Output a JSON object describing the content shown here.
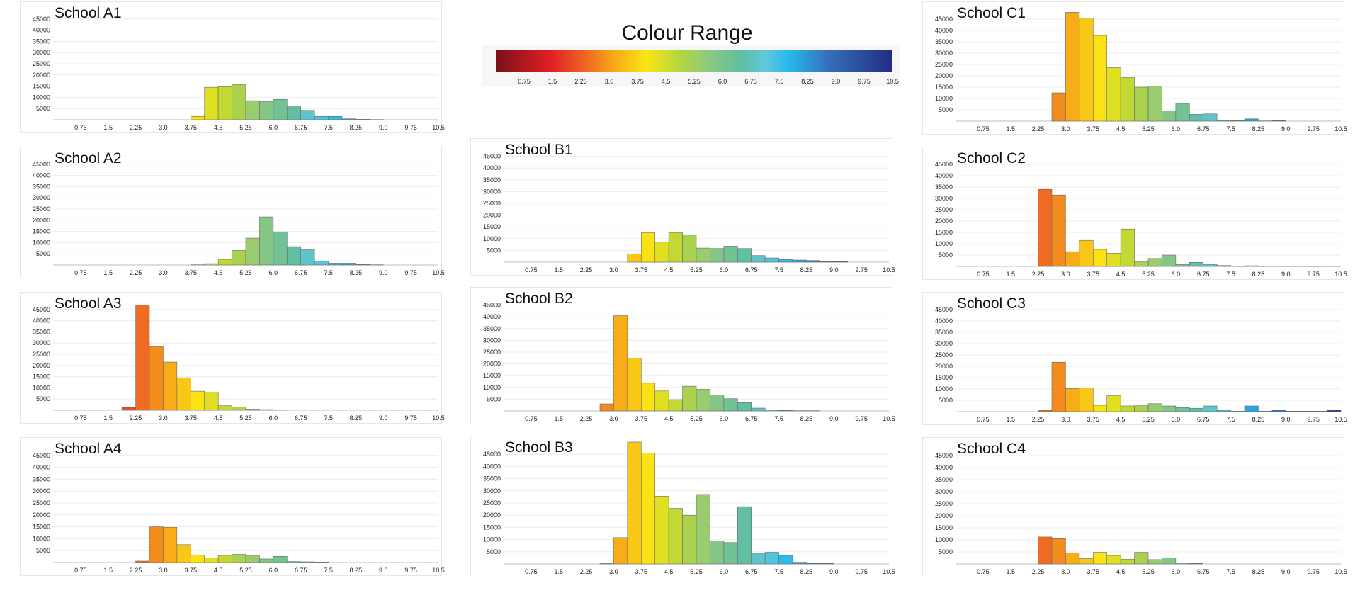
{
  "colour_range": {
    "title": "Colour Range",
    "tick_labels": [
      "0.75",
      "1.5",
      "2.25",
      "3.0",
      "3.75",
      "4.5",
      "5.25",
      "6.0",
      "6.75",
      "7.5",
      "8.25",
      "9.0",
      "9.75",
      "10.5"
    ],
    "min": 0,
    "max": 10.5
  },
  "chart_data": [
    {
      "id": "A1",
      "type": "bar",
      "title": "School A1",
      "bin_start": 3.75,
      "bin_width": 0.375,
      "ylim": [
        0,
        50000
      ],
      "y_ticks": [
        5000,
        10000,
        15000,
        20000,
        25000,
        30000,
        35000,
        40000,
        45000
      ],
      "x_tick_labels": [
        "0.75",
        "1.5",
        "2.25",
        "3.0",
        "3.75",
        "4.5",
        "5.25",
        "6.0",
        "6.75",
        "7.5",
        "8.25",
        "9.0",
        "9.75",
        "10.5"
      ],
      "values": [
        1500,
        14500,
        14800,
        15800,
        8500,
        8200,
        9100,
        5800,
        4200,
        1500,
        1500,
        400,
        200,
        100
      ]
    },
    {
      "id": "A2",
      "type": "bar",
      "title": "School A2",
      "bin_start": 3.75,
      "bin_width": 0.375,
      "ylim": [
        0,
        50000
      ],
      "y_ticks": [
        5000,
        10000,
        15000,
        20000,
        25000,
        30000,
        35000,
        40000,
        45000
      ],
      "x_tick_labels": [
        "0.75",
        "1.5",
        "2.25",
        "3.0",
        "3.75",
        "4.5",
        "5.25",
        "6.0",
        "6.75",
        "7.5",
        "8.25",
        "9.0",
        "9.75",
        "10.5"
      ],
      "values": [
        100,
        600,
        2500,
        6500,
        12000,
        21500,
        14800,
        8200,
        6800,
        1800,
        800,
        800,
        200,
        100
      ]
    },
    {
      "id": "A3",
      "type": "bar",
      "title": "School A3",
      "bin_start": 1.875,
      "bin_width": 0.375,
      "ylim": [
        0,
        50000
      ],
      "y_ticks": [
        5000,
        10000,
        15000,
        20000,
        25000,
        30000,
        35000,
        40000,
        45000
      ],
      "x_tick_labels": [
        "0.75",
        "1.5",
        "2.25",
        "3.0",
        "3.75",
        "4.5",
        "5.25",
        "6.0",
        "6.75",
        "7.5",
        "8.25",
        "9.0",
        "9.75",
        "10.5"
      ],
      "values": [
        1200,
        47000,
        28500,
        21500,
        14500,
        8500,
        8000,
        2000,
        1400,
        500,
        300,
        100
      ]
    },
    {
      "id": "A4",
      "type": "bar",
      "title": "School A4",
      "bin_start": 2.25,
      "bin_width": 0.375,
      "ylim": [
        0,
        50000
      ],
      "y_ticks": [
        5000,
        10000,
        15000,
        20000,
        25000,
        30000,
        35000,
        40000,
        45000
      ],
      "x_tick_labels": [
        "0.75",
        "1.5",
        "2.25",
        "3.0",
        "3.75",
        "4.5",
        "5.25",
        "6.0",
        "6.75",
        "7.5",
        "8.25",
        "9.0",
        "9.75",
        "10.5"
      ],
      "values": [
        600,
        15000,
        14800,
        7500,
        3200,
        2000,
        3000,
        3400,
        3000,
        1500,
        2600,
        400,
        300,
        200
      ]
    },
    {
      "id": "B1",
      "type": "bar",
      "title": "School B1",
      "bin_start": 3.375,
      "bin_width": 0.375,
      "ylim": [
        0,
        50000
      ],
      "y_ticks": [
        5000,
        10000,
        15000,
        20000,
        25000,
        30000,
        35000,
        40000,
        45000
      ],
      "x_tick_labels": [
        "0.75",
        "1.5",
        "2.25",
        "3.0",
        "3.75",
        "4.5",
        "5.25",
        "6.0",
        "6.75",
        "7.5",
        "8.25",
        "9.0",
        "9.75",
        "10.5"
      ],
      "values": [
        3500,
        12500,
        8500,
        12600,
        11500,
        6000,
        5800,
        6800,
        5800,
        2800,
        1800,
        1100,
        900,
        700,
        200,
        300
      ]
    },
    {
      "id": "B2",
      "type": "bar",
      "title": "School B2",
      "bin_start": 2.625,
      "bin_width": 0.375,
      "ylim": [
        0,
        50000
      ],
      "y_ticks": [
        5000,
        10000,
        15000,
        20000,
        25000,
        30000,
        35000,
        40000,
        45000
      ],
      "x_tick_labels": [
        "0.75",
        "1.5",
        "2.25",
        "3.0",
        "3.75",
        "4.5",
        "5.25",
        "6.0",
        "6.75",
        "7.5",
        "8.25",
        "9.0",
        "9.75",
        "10.5"
      ],
      "values": [
        3000,
        40500,
        22500,
        11800,
        8500,
        4800,
        10500,
        9200,
        6800,
        5200,
        3500,
        1200,
        400,
        200,
        100,
        100
      ]
    },
    {
      "id": "B3",
      "type": "bar",
      "title": "School B3",
      "bin_start": 2.625,
      "bin_width": 0.375,
      "ylim": [
        0,
        50000
      ],
      "y_ticks": [
        5000,
        10000,
        15000,
        20000,
        25000,
        30000,
        35000,
        40000,
        45000
      ],
      "x_tick_labels": [
        "0.75",
        "1.5",
        "2.25",
        "3.0",
        "3.75",
        "4.5",
        "5.25",
        "6.0",
        "6.75",
        "7.5",
        "8.25",
        "9.0",
        "9.75",
        "10.5"
      ],
      "values": [
        300,
        10800,
        50000,
        45500,
        27800,
        22800,
        20000,
        28500,
        9500,
        8800,
        23500,
        4200,
        4800,
        3500,
        700,
        300,
        200
      ]
    },
    {
      "id": "C1",
      "type": "bar",
      "title": "School C1",
      "bin_start": 2.625,
      "bin_width": 0.375,
      "ylim": [
        0,
        50000
      ],
      "y_ticks": [
        5000,
        10000,
        15000,
        20000,
        25000,
        30000,
        35000,
        40000,
        45000
      ],
      "x_tick_labels": [
        "0.75",
        "1.5",
        "2.25",
        "3.0",
        "3.75",
        "4.5",
        "5.25",
        "6.0",
        "6.75",
        "7.5",
        "8.25",
        "9.0",
        "9.75",
        "10.5"
      ],
      "values": [
        12500,
        48000,
        45500,
        37800,
        23600,
        19200,
        15000,
        15500,
        4500,
        7800,
        3000,
        3200,
        300,
        200,
        1000,
        100,
        300
      ]
    },
    {
      "id": "C2",
      "type": "bar",
      "title": "School C2",
      "bin_start": 2.25,
      "bin_width": 0.375,
      "ylim": [
        0,
        50000
      ],
      "y_ticks": [
        5000,
        10000,
        15000,
        20000,
        25000,
        30000,
        35000,
        40000,
        45000
      ],
      "x_tick_labels": [
        "0.75",
        "1.5",
        "2.25",
        "3.0",
        "3.75",
        "4.5",
        "5.25",
        "6.0",
        "6.75",
        "7.5",
        "8.25",
        "9.0",
        "9.75",
        "10.5"
      ],
      "values": [
        34000,
        31500,
        6500,
        11500,
        7500,
        5800,
        16500,
        2000,
        3500,
        5000,
        800,
        1800,
        900,
        400,
        100,
        300,
        100,
        200,
        100,
        200,
        100,
        200
      ]
    },
    {
      "id": "C3",
      "type": "bar",
      "title": "School C3",
      "bin_start": 2.25,
      "bin_width": 0.375,
      "ylim": [
        0,
        50000
      ],
      "y_ticks": [
        5000,
        10000,
        15000,
        20000,
        25000,
        30000,
        35000,
        40000,
        45000
      ],
      "x_tick_labels": [
        "0.75",
        "1.5",
        "2.25",
        "3.0",
        "3.75",
        "4.5",
        "5.25",
        "6.0",
        "6.75",
        "7.5",
        "8.25",
        "9.0",
        "9.75",
        "10.5"
      ],
      "values": [
        500,
        21800,
        10200,
        10500,
        2800,
        7000,
        2500,
        2600,
        3500,
        2500,
        1800,
        1500,
        2500,
        500,
        200,
        2500,
        200,
        800,
        200,
        200,
        200,
        600
      ]
    },
    {
      "id": "C4",
      "type": "bar",
      "title": "School C4",
      "bin_start": 2.25,
      "bin_width": 0.375,
      "ylim": [
        0,
        50000
      ],
      "y_ticks": [
        5000,
        10000,
        15000,
        20000,
        25000,
        30000,
        35000,
        40000,
        45000
      ],
      "x_tick_labels": [
        "0.75",
        "1.5",
        "2.25",
        "3.0",
        "3.75",
        "4.5",
        "5.25",
        "6.0",
        "6.75",
        "7.5",
        "8.25",
        "9.0",
        "9.75",
        "10.5"
      ],
      "values": [
        11200,
        10500,
        4500,
        2200,
        4800,
        3500,
        2000,
        4800,
        1800,
        2500,
        400,
        200
      ]
    }
  ]
}
